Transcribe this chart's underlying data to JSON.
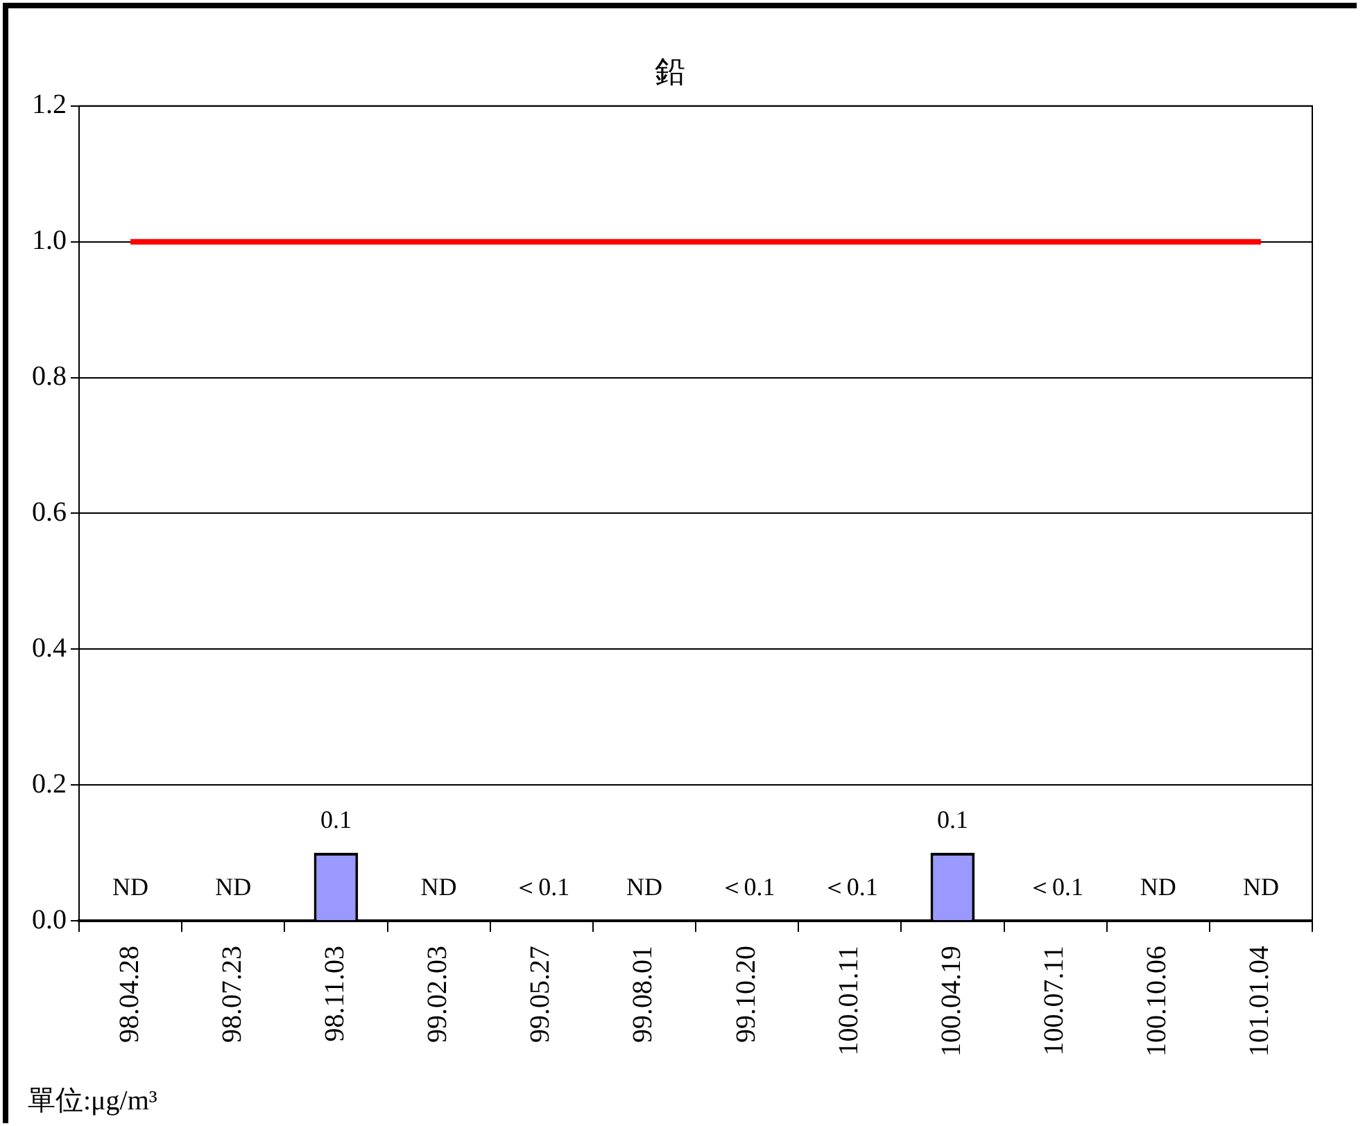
{
  "chart_data": {
    "type": "bar",
    "title": "鉛",
    "categories": [
      "98.04.28",
      "98.07.23",
      "98.11.03",
      "99.02.03",
      "99.05.27",
      "99.08.01",
      "99.10.20",
      "100.01.11",
      "100.04.19",
      "100.07.11",
      "100.10.06",
      "101.01.04"
    ],
    "values": [
      null,
      null,
      0.1,
      null,
      null,
      null,
      null,
      null,
      0.1,
      null,
      null,
      null
    ],
    "value_labels": [
      "ND",
      "ND",
      "0.1",
      "ND",
      "＜0.1",
      "ND",
      "＜0.1",
      "＜0.1",
      "0.1",
      "＜0.1",
      "ND",
      "ND"
    ],
    "color": "#9999ff",
    "ylim": [
      0,
      1.2
    ],
    "yticks": [
      {
        "value": 0,
        "label": "0.0"
      },
      {
        "value": 0.2,
        "label": "0.2"
      },
      {
        "value": 0.4,
        "label": "0.4"
      },
      {
        "value": 0.6,
        "label": "0.6"
      },
      {
        "value": 0.8,
        "label": "0.8"
      },
      {
        "value": 1,
        "label": "1.0"
      },
      {
        "value": 1.2,
        "label": "1.2"
      }
    ],
    "grid": "y",
    "ref_lines": [
      {
        "axis": "y",
        "value": 1,
        "color": "#ff0000"
      }
    ],
    "annotations": [
      "單位:μg/m³"
    ]
  }
}
